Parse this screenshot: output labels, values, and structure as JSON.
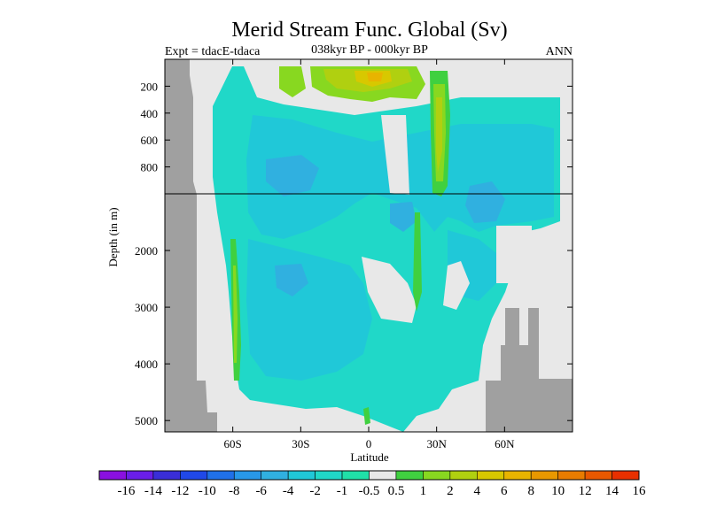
{
  "chart_data": {
    "type": "heatmap",
    "title": "Merid Stream Func. Global (Sv)",
    "subtitle_left": "Expt = tdacE-tdaca",
    "subtitle_center": "038kyr BP - 000kyr BP",
    "subtitle_right": "ANN",
    "xlabel": "Latitude",
    "ylabel": "Depth (in m)",
    "x_ticks": [
      {
        "value": -60,
        "label": "60S"
      },
      {
        "value": -30,
        "label": "30S"
      },
      {
        "value": 0,
        "label": "0"
      },
      {
        "value": 30,
        "label": "30N"
      },
      {
        "value": 60,
        "label": "60N"
      }
    ],
    "y_upper_ticks": [
      {
        "value": 200,
        "label": "200"
      },
      {
        "value": 400,
        "label": "400"
      },
      {
        "value": 600,
        "label": "600"
      },
      {
        "value": 800,
        "label": "800"
      }
    ],
    "y_lower_ticks": [
      {
        "value": 2000,
        "label": "2000"
      },
      {
        "value": 3000,
        "label": "3000"
      },
      {
        "value": 4000,
        "label": "4000"
      },
      {
        "value": 5000,
        "label": "5000"
      }
    ],
    "x_range": [
      -90,
      90
    ],
    "depth_range_upper": [
      0,
      1000
    ],
    "depth_range_lower": [
      1000,
      5200
    ],
    "colorbar": {
      "labels": [
        "-16",
        "-14",
        "-12",
        "-10",
        "-8",
        "-6",
        "-4",
        "-2",
        "-1",
        "-0.5",
        "0.5",
        "1",
        "2",
        "4",
        "6",
        "8",
        "10",
        "12",
        "14",
        "16"
      ],
      "colors": [
        "#8a10e0",
        "#6a1ee8",
        "#3a2ed8",
        "#2048e8",
        "#2070e8",
        "#2898e8",
        "#30b0e0",
        "#20c8d8",
        "#20d8c8",
        "#20e0a8",
        "#e8e8e8",
        "#40d040",
        "#88d820",
        "#b0d010",
        "#d8c800",
        "#e8b400",
        "#e89800",
        "#e87c00",
        "#e85800",
        "#e83000"
      ]
    },
    "land_color": "#a0a0a0",
    "undefined_color": "#e8e8e8",
    "dominant_value_range": [
      -2,
      -0.5
    ],
    "anomalies": [
      {
        "region": "surface 0-30N",
        "value_range": [
          2,
          8
        ]
      },
      {
        "region": "30N 0-1000m",
        "value_range": [
          2,
          6
        ]
      },
      {
        "region": "62S deep",
        "value_range": [
          1,
          2
        ]
      }
    ]
  }
}
